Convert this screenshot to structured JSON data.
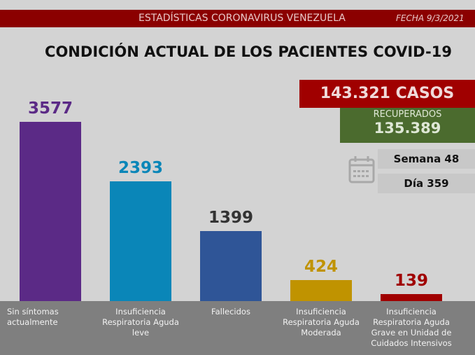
{
  "header": {
    "title": "ESTADÍSTICAS CORONAVIRUS VENEZUELA",
    "date": "FECHA 9/3/2021"
  },
  "summary": {
    "casos": "143.321 CASOS",
    "recuperados_label": "RECUPERADOS",
    "recuperados_value": "135.389",
    "semana": "Semana 48",
    "dia": "Día 359"
  },
  "chart_data": {
    "type": "bar",
    "title": "CONDICIÓN ACTUAL DE LOS PACIENTES COVID-19",
    "categories": [
      "Sin síntomas actualmente",
      "Insuficiencia Respiratoria Aguda leve",
      "Fallecidos",
      "Insuficiencia Respiratoria Aguda Moderada",
      "Insuficiencia Respiratoria Aguda Grave en Unidad de Cuidados Intensivos"
    ],
    "values": [
      3577,
      2393,
      1399,
      424,
      139
    ],
    "value_labels": [
      "3577",
      "2393",
      "1399",
      "424",
      "139"
    ],
    "colors": [
      "#5b2a86",
      "#0a86b8",
      "#2f5597",
      "#c09300",
      "#a00000"
    ],
    "ylim": [
      0,
      3577
    ],
    "xlabel": "",
    "ylabel": ""
  }
}
